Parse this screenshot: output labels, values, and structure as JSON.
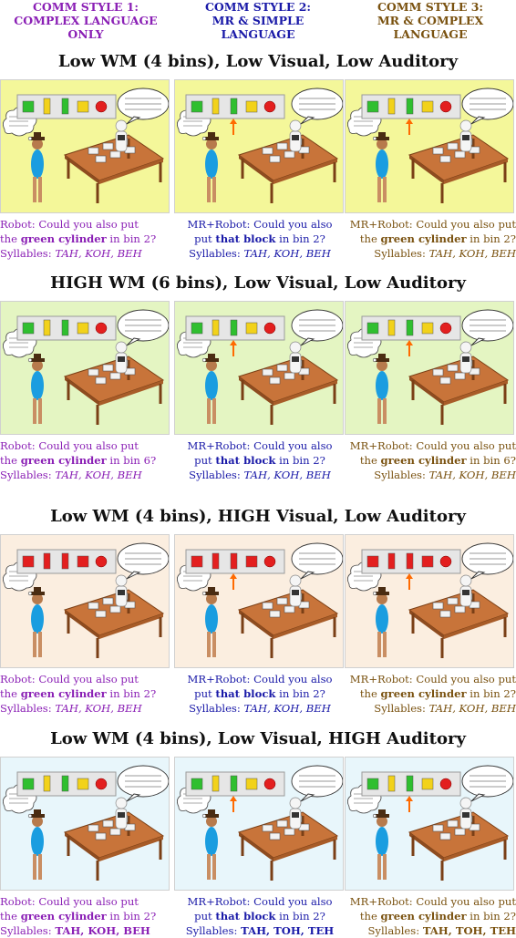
{
  "headers": [
    [
      "COMM STYLE 1:",
      "COMPLEX LANGUAGE",
      "ONLY"
    ],
    [
      "COMM STYLE 2:",
      "MR & SIMPLE",
      "LANGUAGE"
    ],
    [
      "COMM STYLE 3:",
      "MR & COMPLEX",
      "LANGUAGE"
    ]
  ],
  "rows": [
    {
      "title": "Low WM (4 bins), Low Visual, Low Auditory",
      "bg": "#f4f79a",
      "blocks": [
        "green-cube",
        "yellow-bar",
        "green-bar",
        "yellow-cube",
        "red-ball"
      ],
      "captions": [
        {
          "a": "Robot: Could you also put",
          "b1": "the ",
          "bold": "green cylinder",
          "b2": " in bin 2?",
          "s1": "Syllables: ",
          "syl": "TAH, KOH, BEH"
        },
        {
          "a": "MR+Robot: Could you also",
          "b1": "put ",
          "bold": "that block",
          "b2": " in bin 2?",
          "s1": "Syllables: ",
          "syl": "TAH, KOH, BEH"
        },
        {
          "a": "MR+Robot: Could you also put",
          "b1": "the ",
          "bold": "green cylinder",
          "b2": " in bin 2?",
          "s1": "Syllables: ",
          "syl": "TAH, KOH, BEH"
        }
      ]
    },
    {
      "title": "HIGH WM (6 bins), Low Visual, Low Auditory",
      "bg": "#e4f5c2",
      "blocks": [
        "green-cube",
        "yellow-bar",
        "green-bar",
        "yellow-cube",
        "red-ball"
      ],
      "captions": [
        {
          "a": "Robot: Could you also put",
          "b1": "the ",
          "bold": "green cylinder",
          "b2": " in bin 6?",
          "s1": "Syllables: ",
          "syl": "TAH, KOH, BEH"
        },
        {
          "a": "MR+Robot: Could you also",
          "b1": "put ",
          "bold": "that block",
          "b2": " in bin 2?",
          "s1": "Syllables: ",
          "syl": "TAH, KOH, BEH"
        },
        {
          "a": "MR+Robot: Could you also put",
          "b1": "the ",
          "bold": "green cylinder",
          "b2": " in bin 6?",
          "s1": "Syllables: ",
          "syl": "TAH, KOH, BEH"
        }
      ]
    },
    {
      "title": "Low WM (4 bins), HIGH Visual, Low Auditory",
      "bg": "#fbeee0",
      "blocks": [
        "red-cube",
        "red-bar",
        "red-bar",
        "red-cube",
        "red-ball"
      ],
      "captions": [
        {
          "a": "Robot: Could you also put",
          "b1": "the ",
          "bold": "green cylinder",
          "b2": " in bin 2?",
          "s1": "Syllables: ",
          "syl": "TAH, KOH, BEH"
        },
        {
          "a": "MR+Robot: Could you also",
          "b1": "put ",
          "bold": "that block",
          "b2": " in bin 2?",
          "s1": "Syllables: ",
          "syl": "TAH, KOH, BEH"
        },
        {
          "a": "MR+Robot: Could you also put",
          "b1": "the ",
          "bold": "green cylinder",
          "b2": " in bin 2?",
          "s1": "Syllables: ",
          "syl": "TAH, KOH, BEH"
        }
      ]
    },
    {
      "title": "Low WM (4 bins), Low Visual, HIGH Auditory",
      "bg": "#e8f6fb",
      "blocks": [
        "green-cube",
        "yellow-bar",
        "green-bar",
        "yellow-cube",
        "red-ball"
      ],
      "captions": [
        {
          "a": "Robot: Could you also put",
          "b1": "the ",
          "bold": "green cylinder",
          "b2": " in bin 2?",
          "s1": "Syllables: ",
          "syl": "TAH, KOH, BEH"
        },
        {
          "a": "MR+Robot: Could you also",
          "b1": "put ",
          "bold": "that block",
          "b2": " in bin 2?",
          "s1": "Syllables: ",
          "syl": "TAH, TOH, TEH"
        },
        {
          "a": "MR+Robot: Could you also put",
          "b1": "the ",
          "bold": "green cylinder",
          "b2": " in bin 2?",
          "s1": "Syllables: ",
          "syl": "TAH, TOH, TEH"
        }
      ]
    }
  ],
  "colors": {
    "style1": "#8a1fb5",
    "style2": "#1a1aa8",
    "style3": "#7a5210"
  }
}
